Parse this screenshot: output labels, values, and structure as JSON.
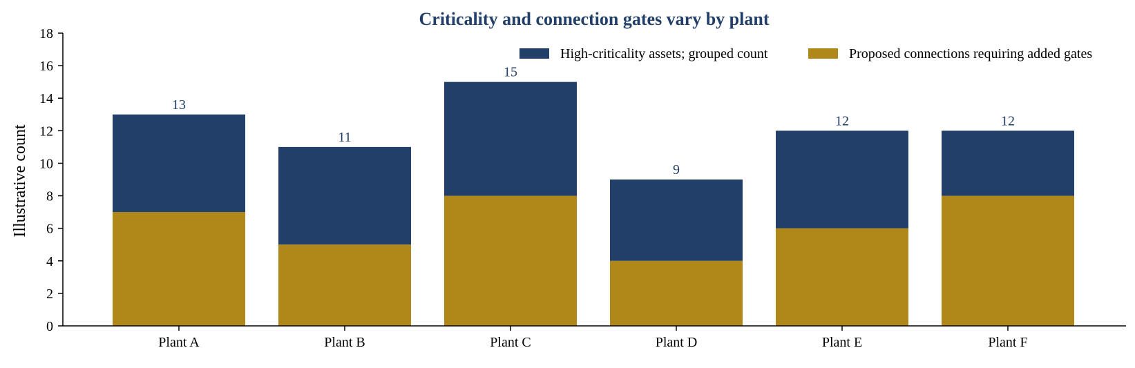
{
  "chart_data": {
    "type": "bar",
    "stacked": true,
    "title": "Criticality and connection gates vary by plant",
    "xlabel": "",
    "ylabel": "Illustrative count",
    "categories": [
      "Plant A",
      "Plant B",
      "Plant C",
      "Plant D",
      "Plant E",
      "Plant F"
    ],
    "series": [
      {
        "name": "Proposed connections requiring added gates",
        "color": "#B08719",
        "values": [
          7,
          5,
          8,
          4,
          6,
          8
        ]
      },
      {
        "name": "High-criticality assets; grouped count",
        "color": "#213F69",
        "values": [
          6,
          6,
          7,
          5,
          6,
          4
        ]
      }
    ],
    "totals": [
      13,
      11,
      15,
      9,
      12,
      12
    ],
    "legend_order": [
      "High-criticality assets; grouped count",
      "Proposed connections requiring added gates"
    ],
    "ylim": [
      0,
      18
    ],
    "yticks": [
      0,
      2,
      4,
      6,
      8,
      10,
      12,
      14,
      16,
      18
    ],
    "grid": false,
    "legend_position": "top-right",
    "colors": {
      "title": "#213F69",
      "data_label": "#213F69",
      "axis": "#000000"
    }
  }
}
